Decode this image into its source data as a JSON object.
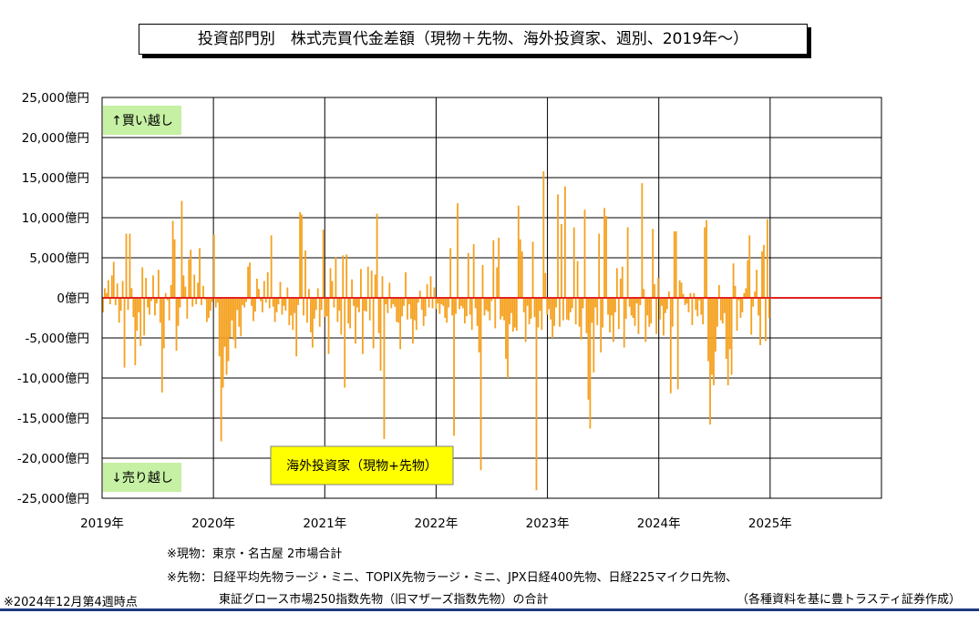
{
  "title": "投資部門別　株式売買代金差額（現物＋先物、海外投資家、週別、2019年〜）",
  "chart_data": {
    "type": "bar",
    "title": "投資部門別　株式売買代金差額（現物＋先物、海外投資家、週別、2019年〜）",
    "series": [
      {
        "name": "海外投資家（現物+先物）",
        "color": "#f5a11f",
        "values": [
          -1800,
          1200,
          600,
          2200,
          -800,
          2800,
          4500,
          -900,
          1800,
          -3100,
          -1600,
          2100,
          -8700,
          8000,
          -1500,
          8000,
          1200,
          -2400,
          -8400,
          -4100,
          -1800,
          -6000,
          3800,
          -4700,
          2500,
          -1200,
          -2100,
          -400,
          2800,
          -2200,
          -700,
          3500,
          -3100,
          -11800,
          -6300,
          600,
          -300,
          -2800,
          1600,
          9600,
          7300,
          -6600,
          -3500,
          -1200,
          12100,
          2800,
          1400,
          -2600,
          4800,
          6000,
          -1100,
          2900,
          -800,
          1900,
          6200,
          -900,
          1500,
          -200,
          -3000,
          -2500,
          -1600,
          -500,
          7900,
          -1200,
          -600,
          -7300,
          -17900,
          -11200,
          -6100,
          -9600,
          -7900,
          -4900,
          -2800,
          -5200,
          -6300,
          -1500,
          -3600,
          -4800,
          -900,
          -1200,
          -500,
          3900,
          4400,
          -1000,
          -2900,
          -1700,
          2400,
          1100,
          -400,
          -1800,
          2100,
          -600,
          3200,
          -1300,
          7800,
          -1100,
          -3000,
          -1800,
          -800,
          2000,
          -2100,
          -1000,
          -1600,
          1300,
          -3400,
          -2200,
          -4000,
          -1900,
          -7300,
          -900,
          10700,
          10400,
          -2200,
          5900,
          -3100,
          1100,
          -4300,
          -6200,
          -2600,
          -1500,
          1200,
          -3600,
          -1500,
          8500,
          -2400,
          -2300,
          -7000,
          3700,
          2100,
          -1200,
          5100,
          -3000,
          -1600,
          -4600,
          5300,
          -11200,
          5400,
          -3200,
          -3800,
          2300,
          -1000,
          -5700,
          -1200,
          -1800,
          3600,
          -7000,
          -1600,
          -1700,
          3900,
          -2800,
          3400,
          -6300,
          2900,
          10500,
          -4400,
          -9100,
          2700,
          -17600,
          -800,
          -1900,
          1900,
          -1300,
          -800,
          -1100,
          -3000,
          -3100,
          -6400,
          -2300,
          -1000,
          3200,
          -2700,
          -800,
          -2600,
          -5700,
          -2800,
          -4000,
          -600,
          900,
          -1500,
          -3500,
          -2300,
          1700,
          -1200,
          2700,
          -1300,
          1300,
          -1400,
          -700,
          -2000,
          -800,
          -1000,
          -2500,
          -3100,
          -1200,
          6200,
          -2200,
          -17200,
          -2000,
          11800,
          -1400,
          -1000,
          -1300,
          -3200,
          -2300,
          5600,
          -2100,
          -4000,
          6700,
          -1300,
          -3500,
          -6800,
          -21500,
          4100,
          -2200,
          -1500,
          -1700,
          -2800,
          -400,
          7200,
          -3800,
          3800,
          7500,
          -2700,
          -2300,
          -2800,
          -7600,
          -10000,
          -3300,
          -1900,
          -4200,
          -3700,
          -4100,
          11500,
          7300,
          5800,
          -1800,
          -5500,
          -1000,
          -3300,
          -2600,
          7000,
          -2400,
          -24000,
          -3700,
          -1600,
          -4000,
          15800,
          3100,
          -2100,
          -1400,
          -2700,
          -5000,
          -3500,
          -1200,
          12900,
          -3600,
          9200,
          -2800,
          13900,
          -2700,
          -2800,
          -1800,
          -1300,
          8800,
          -3300,
          4600,
          -3600,
          -5200,
          -1300,
          11000,
          -4400,
          -12700,
          -16300,
          -3100,
          -9300,
          -1200,
          -3400,
          8000,
          -6800,
          -3700,
          11200,
          10200,
          -2100,
          -4300,
          -2200,
          -5500,
          -1800,
          3700,
          -3900,
          2400,
          3900,
          -6200,
          -2600,
          8800,
          -1100,
          -2200,
          -2500,
          -3500,
          -700,
          -4500,
          -900,
          14300,
          1100,
          -5500,
          -2200,
          -3600,
          -3200,
          8600,
          1700,
          -4500,
          2500,
          -2700,
          -1000,
          -4700,
          -1900,
          -1400,
          800,
          -11900,
          -3600,
          8300,
          8300,
          -11400,
          2200,
          1900,
          500,
          -900,
          -700,
          -1800,
          600,
          -3400,
          600,
          -1500,
          -2300,
          -300,
          -2100,
          -3300,
          8800,
          9700,
          -7900,
          -15800,
          -9600,
          -10900,
          -6700,
          -3600,
          1600,
          -2800,
          -3200,
          -1900,
          -7600,
          -10900,
          -6400,
          -9600,
          4300,
          1500,
          -4100,
          -300,
          -2500,
          -1800,
          600,
          1200,
          4700,
          7800,
          -4600,
          -1100,
          800,
          3500,
          -2200,
          -5900,
          5800,
          6600,
          -5400,
          9800,
          -2500
        ]
      }
    ],
    "ylim": [
      -25000,
      25000
    ],
    "y_ticks": [
      25000,
      20000,
      15000,
      10000,
      5000,
      0,
      -5000,
      -10000,
      -15000,
      -20000,
      -25000
    ],
    "y_tick_labels": [
      "25,000億円",
      "20,000億円",
      "15,000億円",
      "10,000億円",
      "5,000億円",
      "0億円",
      "-5,000億円",
      "-10,000億円",
      "-15,000億円",
      "-20,000億円",
      "-25,000億円"
    ],
    "x_tick_labels": [
      "2019年",
      "2020年",
      "2021年",
      "2022年",
      "2023年",
      "2024年",
      "2025年"
    ],
    "x_ticks_years": [
      2019,
      2020,
      2021,
      2022,
      2023,
      2024,
      2025
    ],
    "x_range_years": [
      2019,
      2026
    ],
    "grid": true,
    "zero_line_color": "#e0241d",
    "annotations": {
      "buy": "↑買い越し",
      "sell": "↓売り越し",
      "series_label": "海外投資家（現物+先物）"
    }
  },
  "notes": {
    "spot": "※現物：東京・名古屋 2市場合計",
    "futures_1": "※先物：日経平均先物ラージ・ミニ、TOPIX先物ラージ・ミニ、JPX日経400先物、日経225マイクロ先物、",
    "futures_2": "東証グロース市場250指数先物（旧マザーズ指数先物）の合計",
    "as_of": "※2024年12月第4週時点",
    "source": "（各種資料を基に豊トラスティ証券作成）"
  },
  "colors": {
    "bar": "#f5a11f",
    "zero_line": "#e0241d",
    "green_label": "#c6f0a4",
    "yellow_label": "#ffff00",
    "bottom_rule": "#1f3a80"
  }
}
